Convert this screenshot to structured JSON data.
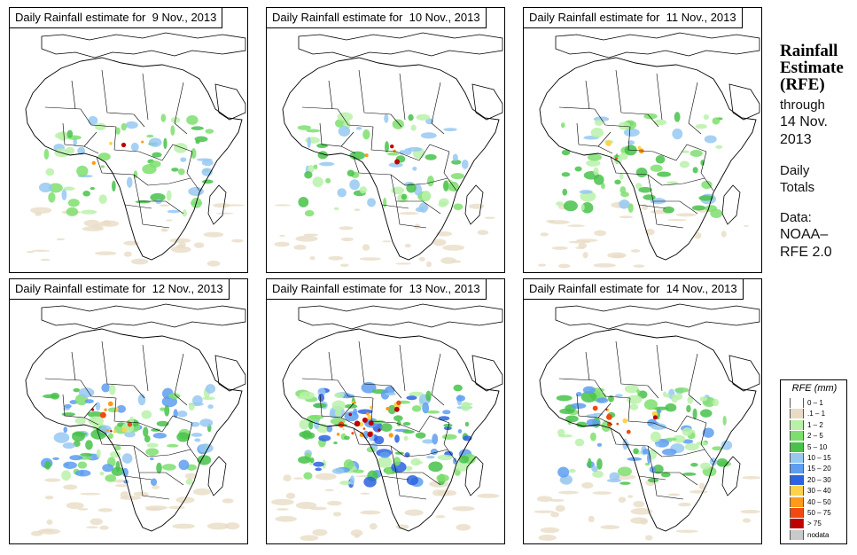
{
  "panels": [
    {
      "id": "p1",
      "title": "Daily Rainfall estimate for  9 Nov., 2013",
      "rain": "low"
    },
    {
      "id": "p2",
      "title": "Daily Rainfall estimate for  10 Nov., 2013",
      "rain": "low"
    },
    {
      "id": "p3",
      "title": "Daily Rainfall estimate for  11 Nov., 2013",
      "rain": "low"
    },
    {
      "id": "p4",
      "title": "Daily Rainfall estimate for  12 Nov., 2013",
      "rain": "mid"
    },
    {
      "id": "p5",
      "title": "Daily Rainfall estimate for  13 Nov., 2013",
      "rain": "high"
    },
    {
      "id": "p6",
      "title": "Daily Rainfall estimate for  14 Nov., 2013",
      "rain": "mid"
    }
  ],
  "sidebar": {
    "title_line1": "Rainfall",
    "title_line2": "Estimate",
    "title_line3": "(RFE)",
    "through": "through",
    "date_line1": "14 Nov.",
    "date_line2": "2013",
    "daily": "Daily",
    "totals": "Totals",
    "data_label": "Data:",
    "source_line1": "NOAA–",
    "source_line2": "RFE 2.0"
  },
  "legend": {
    "title": "RFE (mm)",
    "items": [
      {
        "label": "0 – 1",
        "color": "#ffffff"
      },
      {
        "label": ".1 – 1",
        "color": "#e9dcc6"
      },
      {
        "label": "1 – 2",
        "color": "#b9f1a9"
      },
      {
        "label": "2 – 5",
        "color": "#7edf6e"
      },
      {
        "label": "5 – 10",
        "color": "#48c24a"
      },
      {
        "label": "10 – 15",
        "color": "#97c8f2"
      },
      {
        "label": "15 – 20",
        "color": "#5d9ef0"
      },
      {
        "label": "20 – 30",
        "color": "#2c63e0"
      },
      {
        "label": "30 – 40",
        "color": "#ffd24a"
      },
      {
        "label": "40 – 50",
        "color": "#ff9a1a"
      },
      {
        "label": "50 – 75",
        "color": "#ef4b10"
      },
      {
        "label": "> 75",
        "color": "#c00000"
      },
      {
        "label": "nodata",
        "color": "#c9c9c9"
      }
    ]
  }
}
